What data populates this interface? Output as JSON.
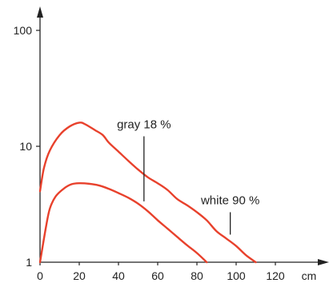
{
  "chart_data": {
    "type": "line",
    "title": "",
    "xlabel": "",
    "ylabel": "",
    "x_unit": "cm",
    "y_scale": "log",
    "xlim": [
      0,
      140
    ],
    "ylim": [
      1,
      100
    ],
    "x_ticks": [
      "0",
      "20",
      "40",
      "60",
      "80",
      "100",
      "120"
    ],
    "y_ticks": [
      {
        "value": 1,
        "label": "1"
      },
      {
        "value": 10,
        "label": "10"
      },
      {
        "value": 100,
        "label": "100"
      }
    ],
    "grid": false,
    "line_color": "#e8412c",
    "axis_color": "#222222",
    "series": [
      {
        "x": [
          0,
          2,
          5,
          10,
          15,
          20,
          23,
          28,
          32,
          35,
          40,
          45,
          50,
          55,
          60,
          65,
          70,
          75,
          80,
          85,
          90,
          95,
          100,
          105,
          110
        ],
        "y": [
          4.1,
          6.5,
          9.2,
          12.5,
          14.8,
          16.0,
          15.5,
          13.8,
          12.5,
          10.8,
          9.0,
          7.5,
          6.3,
          5.4,
          4.8,
          4.2,
          3.5,
          3.1,
          2.7,
          2.3,
          1.85,
          1.6,
          1.38,
          1.15,
          1.0
        ]
      },
      {
        "x": [
          0,
          3,
          5,
          8,
          12,
          16,
          20,
          25,
          30,
          35,
          40,
          45,
          50,
          55,
          60,
          65,
          70,
          75,
          80,
          85
        ],
        "y": [
          1.0,
          2.0,
          2.9,
          3.7,
          4.3,
          4.7,
          4.8,
          4.75,
          4.6,
          4.3,
          3.95,
          3.6,
          3.2,
          2.75,
          2.3,
          1.95,
          1.65,
          1.4,
          1.2,
          1.0
        ]
      }
    ],
    "annotations": [
      {
        "text": "gray 18 %",
        "x": 53,
        "y_from": 3.35,
        "y_to": 12.2
      },
      {
        "text": "white 90 %",
        "x": 97,
        "y_from": 1.73,
        "y_to": 2.7
      }
    ]
  }
}
